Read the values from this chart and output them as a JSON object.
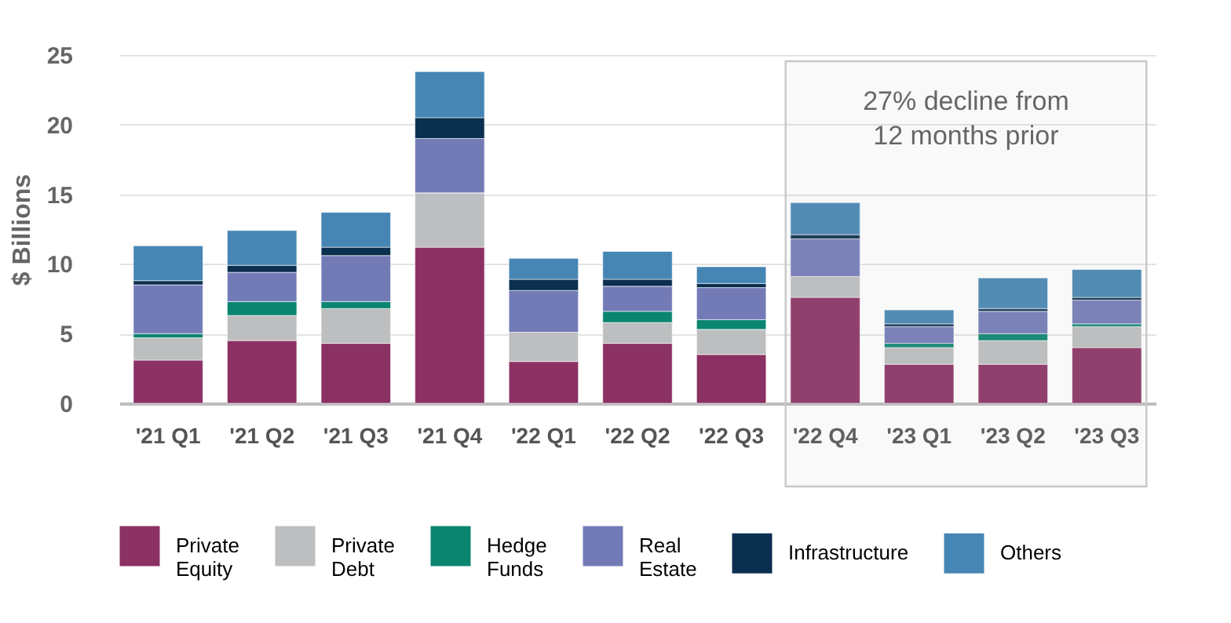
{
  "chart_data": {
    "type": "bar",
    "stacked": true,
    "ylabel": "$ Billions",
    "categories": [
      "'21 Q1",
      "'21 Q2",
      "'21 Q3",
      "'21 Q4",
      "'22 Q1",
      "'22 Q2",
      "'22 Q3",
      "'22 Q4",
      "'23 Q1",
      "'23 Q2",
      "'23 Q3"
    ],
    "series": [
      {
        "name": "Private Equity",
        "color": "#8b3163",
        "values": [
          3.1,
          4.5,
          4.3,
          11.2,
          3.0,
          4.3,
          3.5,
          7.6,
          2.8,
          2.8,
          4.0
        ]
      },
      {
        "name": "Private Debt",
        "color": "#bdbebf",
        "values": [
          1.6,
          1.8,
          2.5,
          3.9,
          2.1,
          1.5,
          1.8,
          1.5,
          1.2,
          1.7,
          1.5
        ]
      },
      {
        "name": "Hedge Funds",
        "color": "#0a8570",
        "values": [
          0.3,
          1.0,
          0.5,
          0,
          0,
          0.8,
          0.7,
          0,
          0.3,
          0.5,
          0.2
        ]
      },
      {
        "name": "Real Estate",
        "color": "#737bb7",
        "values": [
          3.5,
          2.1,
          3.3,
          3.9,
          3.0,
          1.8,
          2.3,
          2.7,
          1.2,
          1.6,
          1.7
        ]
      },
      {
        "name": "Infrastructure",
        "color": "#0b2f4f",
        "values": [
          0.3,
          0.5,
          0.6,
          1.5,
          0.8,
          0.5,
          0.3,
          0.3,
          0.2,
          0.2,
          0.2
        ]
      },
      {
        "name": "Others",
        "color": "#4686b4",
        "values": [
          2.5,
          2.5,
          2.5,
          3.3,
          1.5,
          2.0,
          1.2,
          2.3,
          1.0,
          2.2,
          2.0
        ]
      }
    ],
    "ylim": [
      0,
      25
    ],
    "yticks": [
      0,
      5,
      10,
      15,
      20,
      25
    ],
    "grid": "y",
    "legend": "bottom",
    "bands": [
      {
        "axis": "x",
        "from": "'22 Q4",
        "to": "'23 Q3",
        "label": "27% decline from\n12 months prior",
        "color": "#c8c8c8"
      }
    ]
  }
}
